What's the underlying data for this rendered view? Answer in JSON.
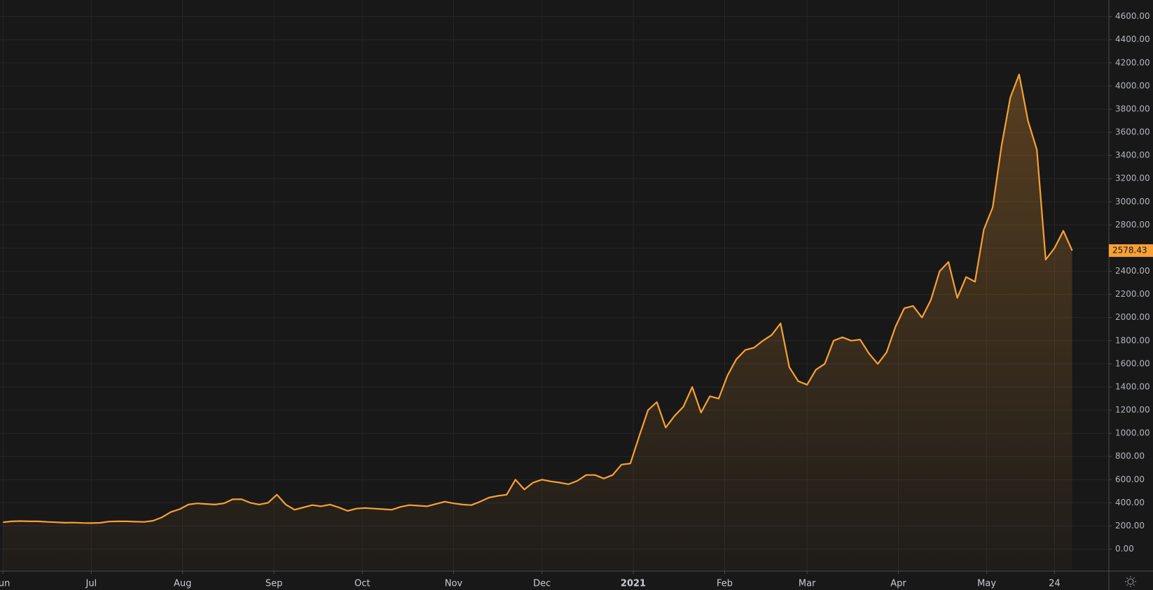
{
  "chart_data": {
    "type": "line",
    "series": [
      {
        "color": "#f7a035",
        "values": [
          232,
          240,
          242,
          240,
          240,
          235,
          232,
          228,
          229,
          226,
          225,
          227,
          238,
          240,
          240,
          237,
          235,
          245,
          275,
          320,
          345,
          385,
          395,
          390,
          385,
          395,
          430,
          430,
          400,
          385,
          400,
          470,
          385,
          340,
          360,
          380,
          370,
          385,
          360,
          330,
          350,
          355,
          350,
          345,
          340,
          365,
          380,
          375,
          370,
          390,
          410,
          395,
          385,
          380,
          410,
          445,
          460,
          470,
          600,
          515,
          575,
          600,
          585,
          575,
          560,
          590,
          640,
          640,
          610,
          640,
          730,
          740,
          975,
          1200,
          1270,
          1050,
          1150,
          1230,
          1400,
          1180,
          1320,
          1300,
          1500,
          1640,
          1720,
          1740,
          1800,
          1850,
          1950,
          1570,
          1450,
          1420,
          1550,
          1600,
          1800,
          1830,
          1800,
          1810,
          1690,
          1600,
          1700,
          1920,
          2080,
          2100,
          2000,
          2150,
          2400,
          2480,
          2170,
          2350,
          2310,
          2760,
          2950,
          3480,
          3900,
          4100,
          3700,
          3450,
          2500,
          2600,
          2750,
          2578.43
        ]
      }
    ],
    "ylim": [
      -190,
      4743
    ],
    "yticks": [
      {
        "value": 0,
        "label": "0.00"
      },
      {
        "value": 200,
        "label": "200.00"
      },
      {
        "value": 400,
        "label": "400.00"
      },
      {
        "value": 600,
        "label": "600.00"
      },
      {
        "value": 800,
        "label": "800.00"
      },
      {
        "value": 1000,
        "label": "1000.00"
      },
      {
        "value": 1200,
        "label": "1200.00"
      },
      {
        "value": 1400,
        "label": "1400.00"
      },
      {
        "value": 1600,
        "label": "1600.00"
      },
      {
        "value": 1800,
        "label": "1800.00"
      },
      {
        "value": 2000,
        "label": "2000.00"
      },
      {
        "value": 2200,
        "label": "2200.00"
      },
      {
        "value": 2400,
        "label": "2400.00"
      },
      {
        "value": 2600,
        "label": "2600.00"
      },
      {
        "value": 2800,
        "label": "2800.00"
      },
      {
        "value": 3000,
        "label": "3000.00"
      },
      {
        "value": 3200,
        "label": "3200.00"
      },
      {
        "value": 3400,
        "label": "3400.00"
      },
      {
        "value": 3600,
        "label": "3600.00"
      },
      {
        "value": 3800,
        "label": "3800.00"
      },
      {
        "value": 4000,
        "label": "4000.00"
      },
      {
        "value": 4200,
        "label": "4200.00"
      },
      {
        "value": 4400,
        "label": "4400.00"
      },
      {
        "value": 4600,
        "label": "4600.00"
      }
    ],
    "xticks": [
      {
        "value": 0,
        "label": "Jun"
      },
      {
        "value": 10,
        "label": "Jul"
      },
      {
        "value": 20.33,
        "label": "Aug"
      },
      {
        "value": 30.67,
        "label": "Sep"
      },
      {
        "value": 40.67,
        "label": "Oct"
      },
      {
        "value": 51,
        "label": "Nov"
      },
      {
        "value": 61,
        "label": "Dec"
      },
      {
        "value": 71.33,
        "label": "2021"
      },
      {
        "value": 81.67,
        "label": "Feb"
      },
      {
        "value": 91,
        "label": "Mar"
      },
      {
        "value": 101.33,
        "label": "Apr"
      },
      {
        "value": 111.33,
        "label": "May"
      },
      {
        "value": 119,
        "label": "24"
      }
    ],
    "grid": true
  }
}
